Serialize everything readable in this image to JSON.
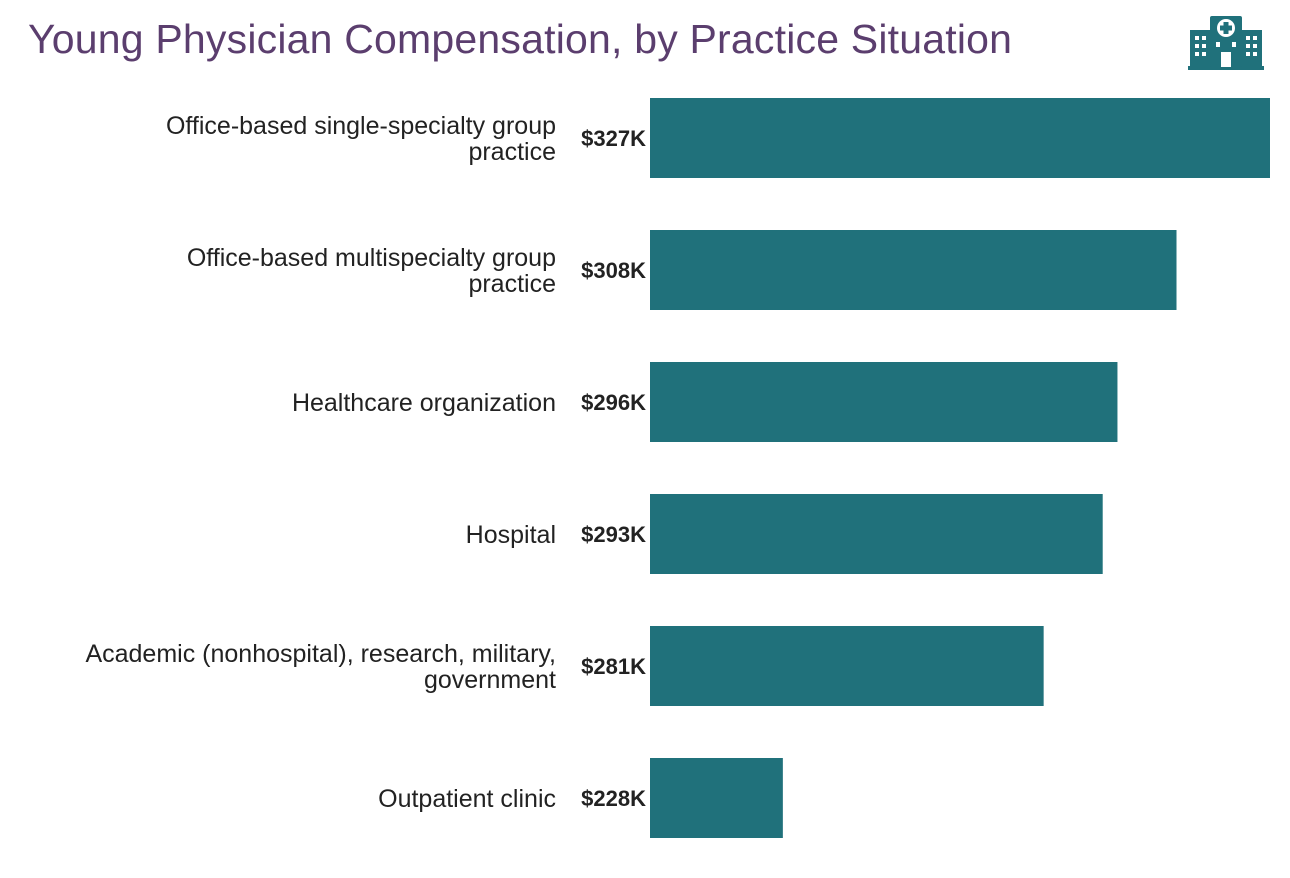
{
  "colors": {
    "title": "#5b3e6e",
    "bar": "#20717b",
    "icon": "#20717b",
    "text": "#222222"
  },
  "icon": "hospital-icon",
  "chart_data": {
    "type": "bar",
    "orientation": "horizontal",
    "title": "Young Physician Compensation, by Practice Situation",
    "categories": [
      [
        "Office-based single-specialty group",
        "practice"
      ],
      [
        "Office-based multispecialty group",
        "practice"
      ],
      [
        "Healthcare organization"
      ],
      [
        "Hospital"
      ],
      [
        "Academic (nonhospital), research, military,",
        "government"
      ],
      [
        "Outpatient clinic"
      ]
    ],
    "values": [
      327,
      308,
      296,
      293,
      281,
      228
    ],
    "value_labels": [
      "$327K",
      "$308K",
      "$296K",
      "$293K",
      "$281K",
      "$228K"
    ],
    "unit": "$K",
    "xlim": [
      201,
      327
    ],
    "grid": false,
    "legend": "none"
  }
}
